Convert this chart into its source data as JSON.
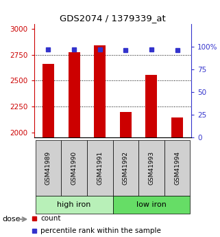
{
  "title": "GDS2074 / 1379339_at",
  "samples": [
    "GSM41989",
    "GSM41990",
    "GSM41991",
    "GSM41992",
    "GSM41993",
    "GSM41994"
  ],
  "counts": [
    2660,
    2775,
    2840,
    2195,
    2555,
    2140
  ],
  "percentile_ranks": [
    97,
    97,
    97,
    96,
    97,
    96
  ],
  "group_colors": [
    "#b8f0b8",
    "#66dd66"
  ],
  "bar_color": "#cc0000",
  "dot_color": "#3333cc",
  "ylim_left": [
    1950,
    3050
  ],
  "ylim_right": [
    0,
    125
  ],
  "yticks_left": [
    2000,
    2250,
    2500,
    2750,
    3000
  ],
  "yticks_right": [
    0,
    25,
    50,
    75,
    100
  ],
  "yticklabels_right": [
    "0",
    "25",
    "50",
    "75",
    "100%"
  ],
  "grid_values": [
    2250,
    2500,
    2750
  ],
  "left_axis_color": "#cc0000",
  "right_axis_color": "#3333cc",
  "sample_box_color": "#d0d0d0",
  "bar_width": 0.45
}
